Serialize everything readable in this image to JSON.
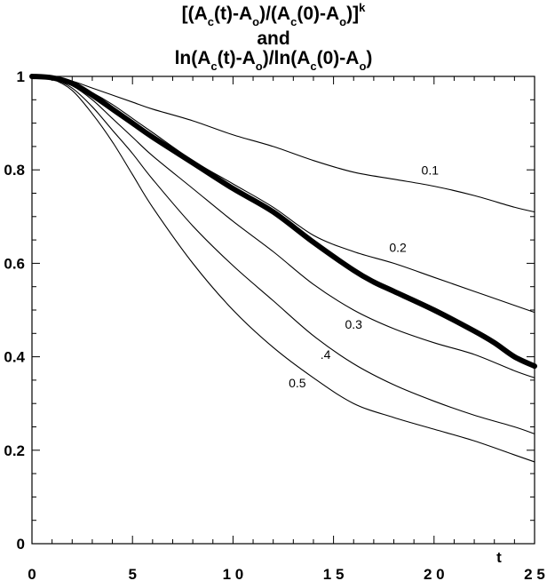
{
  "chart_data": {
    "type": "line",
    "title_lines": [
      [
        "[(A",
        "c",
        "(t)-A",
        "o",
        ")/(A",
        "c",
        "(0)-A",
        "o",
        ")]",
        "k",
        ""
      ],
      [
        "and"
      ],
      [
        "ln(A",
        "c",
        "(t)-A",
        "o",
        ")/ln(A",
        "c",
        "(0)-A",
        "o",
        ")"
      ]
    ],
    "xlabel": "t",
    "ylabel": "",
    "xlim": [
      0,
      25
    ],
    "ylim": [
      0,
      1
    ],
    "x_tick_labels": [
      "0",
      "5",
      "1 0",
      "1 5",
      "2 0",
      "2 5"
    ],
    "x_tick_values": [
      0,
      5,
      10,
      15,
      20,
      25
    ],
    "y_tick_labels": [
      "0",
      "0.2",
      "0.4",
      "0.6",
      "0.8",
      "1"
    ],
    "y_tick_values": [
      0,
      0.2,
      0.4,
      0.6,
      0.8,
      1
    ],
    "grid": false,
    "series": [
      {
        "label": "0.1",
        "label_at": [
          19.8,
          0.79
        ],
        "bold": false,
        "x": [
          0,
          1,
          2,
          3,
          4,
          5,
          6,
          8,
          10,
          12,
          14,
          16,
          18,
          20,
          22,
          24,
          25
        ],
        "y": [
          1.0,
          0.998,
          0.99,
          0.975,
          0.96,
          0.945,
          0.93,
          0.905,
          0.875,
          0.85,
          0.82,
          0.795,
          0.78,
          0.765,
          0.745,
          0.72,
          0.71
        ]
      },
      {
        "label": "0.2",
        "label_at": [
          18.2,
          0.625
        ],
        "bold": false,
        "x": [
          0,
          1,
          2,
          3,
          4,
          5,
          6,
          8,
          10,
          12,
          14,
          16,
          18,
          20,
          22,
          24,
          25
        ],
        "y": [
          1.0,
          0.997,
          0.985,
          0.965,
          0.94,
          0.91,
          0.88,
          0.82,
          0.77,
          0.72,
          0.66,
          0.625,
          0.6,
          0.57,
          0.54,
          0.51,
          0.495
        ]
      },
      {
        "label": "",
        "label_at": null,
        "bold": true,
        "x": [
          0,
          1,
          2,
          3,
          4,
          5,
          6,
          8,
          10,
          12,
          14,
          16,
          17,
          18,
          20,
          22,
          23,
          24,
          25
        ],
        "y": [
          1.0,
          0.997,
          0.985,
          0.96,
          0.93,
          0.9,
          0.87,
          0.815,
          0.76,
          0.71,
          0.645,
          0.585,
          0.56,
          0.54,
          0.5,
          0.455,
          0.43,
          0.4,
          0.38
        ]
      },
      {
        "label": "0.3",
        "label_at": [
          16.0,
          0.46
        ],
        "bold": false,
        "x": [
          0,
          1,
          2,
          3,
          4,
          5,
          6,
          8,
          10,
          12,
          14,
          16,
          18,
          20,
          22,
          24,
          25
        ],
        "y": [
          1.0,
          0.996,
          0.98,
          0.95,
          0.91,
          0.87,
          0.83,
          0.76,
          0.69,
          0.625,
          0.555,
          0.5,
          0.46,
          0.43,
          0.405,
          0.37,
          0.355
        ]
      },
      {
        "label": ".4",
        "label_at": [
          14.6,
          0.395
        ],
        "bold": false,
        "x": [
          0,
          1,
          2,
          3,
          4,
          5,
          6,
          8,
          10,
          12,
          14,
          16,
          18,
          20,
          22,
          24,
          25
        ],
        "y": [
          1.0,
          0.995,
          0.975,
          0.935,
          0.885,
          0.835,
          0.78,
          0.68,
          0.595,
          0.52,
          0.445,
          0.385,
          0.34,
          0.305,
          0.275,
          0.25,
          0.235
        ]
      },
      {
        "label": "0.5",
        "label_at": [
          13.2,
          0.335
        ],
        "bold": false,
        "x": [
          0,
          1,
          2,
          3,
          4,
          5,
          6,
          8,
          10,
          12,
          14,
          16,
          18,
          20,
          22,
          24,
          25
        ],
        "y": [
          1.0,
          0.994,
          0.97,
          0.92,
          0.86,
          0.79,
          0.72,
          0.6,
          0.5,
          0.42,
          0.355,
          0.3,
          0.27,
          0.245,
          0.22,
          0.19,
          0.175
        ]
      }
    ]
  }
}
